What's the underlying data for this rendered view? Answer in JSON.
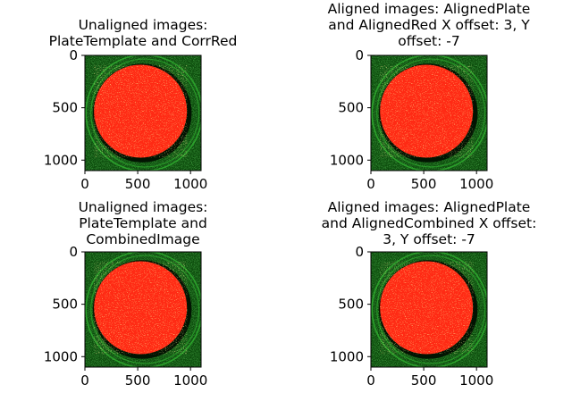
{
  "figure": {
    "panels": [
      {
        "title": "Unaligned images:\nPlateTemplate and CorrRed",
        "image": "petri-dish-red-on-green-overlay"
      },
      {
        "title": "Aligned images: AlignedPlate\nand AlignedRed X offset: 3, Y\noffset: -7",
        "image": "petri-dish-red-on-green-overlay"
      },
      {
        "title": "Unaligned images:\nPlateTemplate and\nCombinedImage",
        "image": "petri-dish-red-on-green-overlay"
      },
      {
        "title": "Aligned images: AlignedPlate\nand AlignedCombined X offset:\n3, Y offset: -7",
        "image": "petri-dish-red-on-green-overlay"
      }
    ]
  },
  "chart_data": {
    "type": "image-grid",
    "rows": 2,
    "cols": 2,
    "xlim": [
      0,
      1100
    ],
    "ylim": [
      1100,
      0
    ],
    "x_ticks": [
      0,
      500,
      1000
    ],
    "y_ticks": [
      0,
      500,
      1000
    ],
    "grid": false,
    "colors": {
      "background_green": "#0d4d0d",
      "dish_fill": "#ff2a14",
      "dish_ring": "#2ea82e",
      "tick_text": "#000000"
    }
  }
}
